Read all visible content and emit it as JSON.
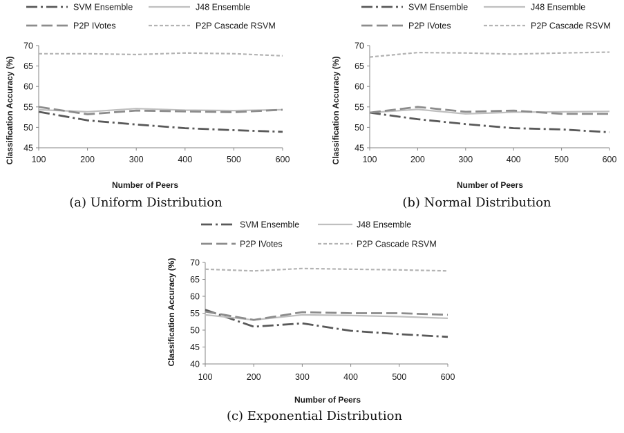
{
  "figure": {
    "legend_items": [
      "SVM Ensemble",
      "J48 Ensemble",
      "P2P IVotes",
      "P2P Cascade RSVM"
    ]
  },
  "chart_data": [
    {
      "type": "line",
      "caption": "(a) Uniform Distribution",
      "xlabel": "Number of Peers",
      "ylabel": "Classification Accuracy (%)",
      "x": [
        100,
        200,
        300,
        400,
        500,
        600
      ],
      "xlim": [
        100,
        600
      ],
      "ylim": [
        45,
        70
      ],
      "yticks": [
        45,
        50,
        55,
        60,
        65,
        70
      ],
      "grid": false,
      "legend": "top",
      "series": [
        {
          "name": "SVM Ensemble",
          "values": [
            53.8,
            51.7,
            50.7,
            49.8,
            49.3,
            48.9
          ]
        },
        {
          "name": "J48 Ensemble",
          "values": [
            54.3,
            53.8,
            54.6,
            54.2,
            54.1,
            54.3
          ]
        },
        {
          "name": "P2P IVotes",
          "values": [
            55.0,
            53.2,
            54.1,
            53.9,
            53.7,
            54.3
          ]
        },
        {
          "name": "P2P Cascade RSVM",
          "values": [
            68.0,
            68.0,
            67.8,
            68.2,
            68.0,
            67.5
          ]
        }
      ]
    },
    {
      "type": "line",
      "caption": "(b) Normal Distribution",
      "xlabel": "Number of Peers",
      "ylabel": "Classification Accuracy (%)",
      "x": [
        100,
        200,
        300,
        400,
        500,
        600
      ],
      "xlim": [
        100,
        600
      ],
      "ylim": [
        45,
        70
      ],
      "yticks": [
        45,
        50,
        55,
        60,
        65,
        70
      ],
      "grid": false,
      "legend": "top",
      "series": [
        {
          "name": "SVM Ensemble",
          "values": [
            53.6,
            52.0,
            50.8,
            49.8,
            49.5,
            48.8
          ]
        },
        {
          "name": "J48 Ensemble",
          "values": [
            53.6,
            54.4,
            53.3,
            53.7,
            53.8,
            53.9
          ]
        },
        {
          "name": "P2P IVotes",
          "values": [
            53.6,
            55.0,
            53.8,
            54.1,
            53.3,
            53.3
          ]
        },
        {
          "name": "P2P Cascade RSVM",
          "values": [
            67.2,
            68.3,
            68.2,
            67.9,
            68.2,
            68.4
          ]
        }
      ]
    },
    {
      "type": "line",
      "caption": "(c) Exponential Distribution",
      "xlabel": "Number of Peers",
      "ylabel": "Classification Accuracy (%)",
      "x": [
        100,
        200,
        300,
        400,
        500,
        600
      ],
      "xlim": [
        100,
        600
      ],
      "ylim": [
        40,
        70
      ],
      "yticks": [
        40,
        45,
        50,
        55,
        60,
        65,
        70
      ],
      "grid": false,
      "legend": "top",
      "series": [
        {
          "name": "SVM Ensemble",
          "values": [
            56.0,
            51.0,
            52.0,
            49.8,
            48.8,
            48.0
          ]
        },
        {
          "name": "J48 Ensemble",
          "values": [
            54.5,
            53.0,
            54.5,
            54.3,
            54.0,
            53.5
          ]
        },
        {
          "name": "P2P IVotes",
          "values": [
            55.5,
            53.0,
            55.3,
            55.0,
            55.0,
            54.5
          ]
        },
        {
          "name": "P2P Cascade RSVM",
          "values": [
            68.0,
            67.5,
            68.2,
            68.0,
            67.8,
            67.5
          ]
        }
      ]
    }
  ]
}
